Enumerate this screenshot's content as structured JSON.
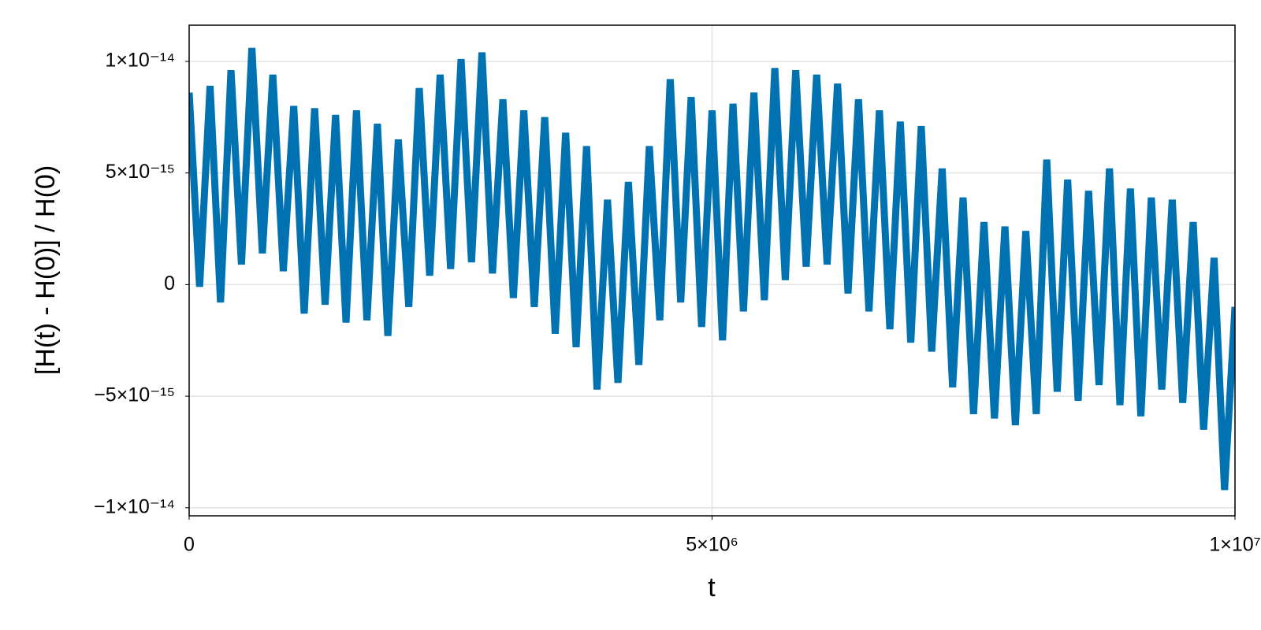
{
  "chart_data": {
    "type": "line",
    "x_label": "t",
    "y_label": "[H(t) - H(0)] / H(0)",
    "color": "#0072b2",
    "grid": true,
    "xlim": [
      0,
      10000000
    ],
    "ylim": [
      -1.036e-14,
      1.162e-14
    ],
    "xticks": [
      0,
      {
        "value": 5000000,
        "label": "5×10⁶"
      },
      {
        "value": 10000000,
        "label": "1×10⁷"
      }
    ],
    "yticks": [
      {
        "value": -1e-14,
        "label": "−1×10⁻¹⁴"
      },
      {
        "value": -5e-15,
        "label": "−5×10⁻¹⁵"
      },
      0,
      {
        "value": 5e-15,
        "label": "5×10⁻¹⁵"
      },
      {
        "value": 1e-14,
        "label": "1×10⁻¹⁴"
      }
    ],
    "x": [
      0,
      100000,
      200000,
      300000,
      400000,
      500000,
      600000,
      700000,
      800000,
      900000,
      1000000,
      1100000,
      1200000,
      1300000,
      1400000,
      1500000,
      1600000,
      1700000,
      1800000,
      1900000,
      2000000,
      2100000,
      2200000,
      2300000,
      2400000,
      2500000,
      2600000,
      2700000,
      2800000,
      2900000,
      3000000,
      3100000,
      3200000,
      3300000,
      3400000,
      3500000,
      3600000,
      3700000,
      3800000,
      3900000,
      4000000,
      4100000,
      4200000,
      4300000,
      4400000,
      4500000,
      4600000,
      4700000,
      4800000,
      4900000,
      5000000,
      5100000,
      5200000,
      5300000,
      5400000,
      5500000,
      5600000,
      5700000,
      5800000,
      5900000,
      6000000,
      6100000,
      6200000,
      6300000,
      6400000,
      6500000,
      6600000,
      6700000,
      6800000,
      6900000,
      7000000,
      7100000,
      7200000,
      7300000,
      7400000,
      7500000,
      7600000,
      7700000,
      7800000,
      7900000,
      8000000,
      8100000,
      8200000,
      8300000,
      8400000,
      8500000,
      8600000,
      8700000,
      8800000,
      8900000,
      9000000,
      9100000,
      9200000,
      9300000,
      9400000,
      9500000,
      9600000,
      9700000,
      9800000,
      9900000,
      10000000
    ],
    "values": [
      8.6e-15,
      -1e-16,
      8.9e-15,
      -8e-16,
      9.6e-15,
      9e-16,
      1.06e-14,
      1.4e-15,
      9.4e-15,
      6e-16,
      8e-15,
      -1.3e-15,
      7.9e-15,
      -9e-16,
      7.6e-15,
      -1.7e-15,
      7.8e-15,
      -1.6e-15,
      7.2e-15,
      -2.3e-15,
      6.5e-15,
      -1e-15,
      8.8e-15,
      4e-16,
      9.4e-15,
      7e-16,
      1.01e-14,
      1e-15,
      1.04e-14,
      5e-16,
      8.3e-15,
      -6e-16,
      7.8e-15,
      -1e-15,
      7.5e-15,
      -2.2e-15,
      6.8e-15,
      -2.8e-15,
      6.2e-15,
      -4.7e-15,
      3.8e-15,
      -4.4e-15,
      4.6e-15,
      -3.6e-15,
      6.2e-15,
      -1.6e-15,
      9.2e-15,
      -8e-16,
      8.4e-15,
      -1.9e-15,
      7.8e-15,
      -2.5e-15,
      8.1e-15,
      -1.2e-15,
      8.6e-15,
      -7e-16,
      9.7e-15,
      2e-16,
      9.6e-15,
      8e-16,
      9.4e-15,
      9e-16,
      9e-15,
      -4e-16,
      8.3e-15,
      -1.2e-15,
      7.8e-15,
      -2e-15,
      7.3e-15,
      -2.6e-15,
      7.1e-15,
      -3e-15,
      5.2e-15,
      -4.6e-15,
      3.9e-15,
      -5.8e-15,
      2.8e-15,
      -6e-15,
      2.6e-15,
      -6.3e-15,
      2.4e-15,
      -5.8e-15,
      5.6e-15,
      -4.8e-15,
      4.7e-15,
      -5.2e-15,
      4.2e-15,
      -4.5e-15,
      5.2e-15,
      -5.4e-15,
      4.3e-15,
      -5.9e-15,
      3.9e-15,
      -4.7e-15,
      3.8e-15,
      -5.3e-15,
      2.8e-15,
      -6.5e-15,
      1.2e-15,
      -9.2e-15,
      -1e-15
    ]
  }
}
